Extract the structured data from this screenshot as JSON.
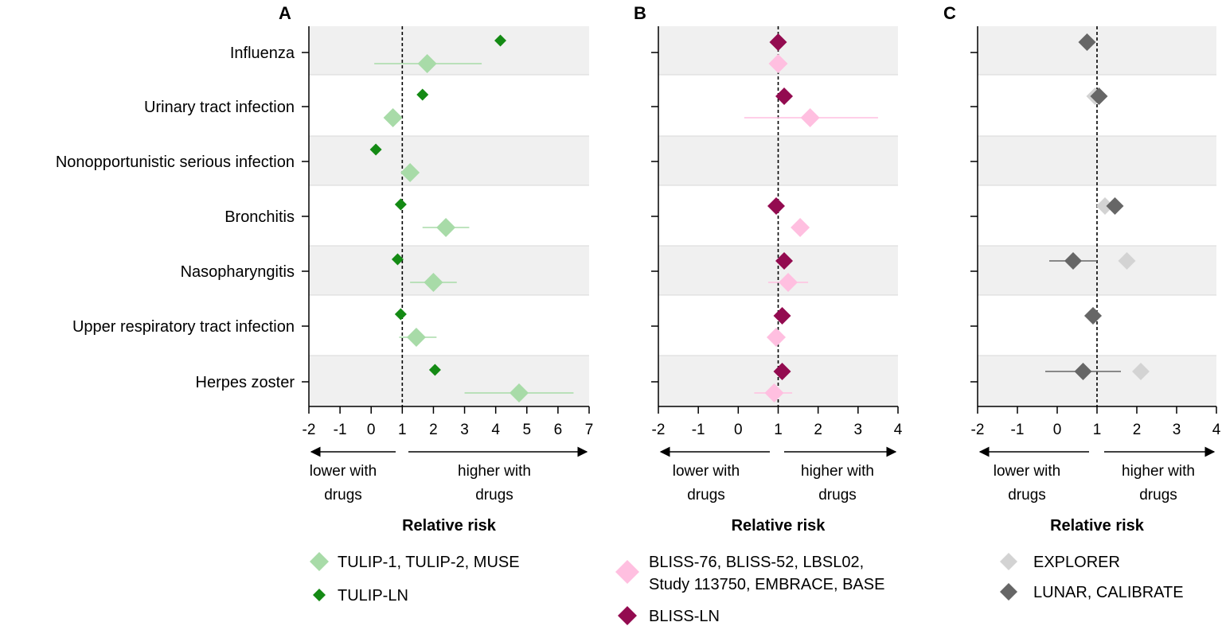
{
  "chart_data": {
    "categories": [
      "Influenza",
      "Urinary tract infection",
      "Nonopportunistic serious infection",
      "Bronchitis",
      "Nasopharyngitis",
      "Upper respiratory tract infection",
      "Herpes zoster"
    ],
    "panels": [
      {
        "id": "A",
        "type": "scatter",
        "title": "A",
        "xlabel": "Relative risk",
        "xlim": [
          -2,
          7
        ],
        "xticks": [
          "-2",
          "-1",
          "0",
          "1",
          "2",
          "3",
          "4",
          "5",
          "6",
          "7"
        ],
        "reference_line": 1,
        "direction_left": [
          "lower with",
          "drugs"
        ],
        "direction_right": [
          "higher with",
          "drugs"
        ],
        "series": [
          {
            "name": "TULIP-1, TULIP-2, MUSE",
            "color": "#a8dba8",
            "marker": "large-diamond",
            "points": [
              {
                "category": "Influenza",
                "value": 1.8,
                "ci": [
                  0.1,
                  3.55
                ]
              },
              {
                "category": "Urinary tract infection",
                "value": 0.7,
                "ci": null
              },
              {
                "category": "Nonopportunistic serious infection",
                "value": 1.25,
                "ci": null
              },
              {
                "category": "Bronchitis",
                "value": 2.4,
                "ci": [
                  1.65,
                  3.15
                ]
              },
              {
                "category": "Nasopharyngitis",
                "value": 2.0,
                "ci": [
                  1.25,
                  2.75
                ]
              },
              {
                "category": "Upper respiratory tract infection",
                "value": 1.45,
                "ci": [
                  0.9,
                  2.1
                ]
              },
              {
                "category": "Herpes zoster",
                "value": 4.75,
                "ci": [
                  3.0,
                  6.5
                ]
              }
            ]
          },
          {
            "name": "TULIP-LN",
            "color": "#148a14",
            "marker": "small-diamond",
            "points": [
              {
                "category": "Influenza",
                "value": 4.15,
                "ci": null
              },
              {
                "category": "Urinary tract infection",
                "value": 1.65,
                "ci": null
              },
              {
                "category": "Nonopportunistic serious infection",
                "value": 0.15,
                "ci": null
              },
              {
                "category": "Bronchitis",
                "value": 0.95,
                "ci": null
              },
              {
                "category": "Nasopharyngitis",
                "value": 0.85,
                "ci": null
              },
              {
                "category": "Upper respiratory tract infection",
                "value": 0.95,
                "ci": null
              },
              {
                "category": "Herpes zoster",
                "value": 2.05,
                "ci": null
              }
            ]
          }
        ]
      },
      {
        "id": "B",
        "type": "scatter",
        "title": "B",
        "xlabel": "Relative risk",
        "xlim": [
          -2,
          4
        ],
        "xticks": [
          "-2",
          "-1",
          "0",
          "1",
          "2",
          "3",
          "4"
        ],
        "reference_line": 1,
        "direction_left": [
          "lower with",
          "drugs"
        ],
        "direction_right": [
          "higher with",
          "drugs"
        ],
        "series": [
          {
            "name": "BLISS-76, BLISS-52, LBSL02, Study 113750, EMBRACE, BASE",
            "color": "#ffbfe0",
            "marker": "large-diamond",
            "points": [
              {
                "category": "Influenza",
                "value": 1.0,
                "ci": null
              },
              {
                "category": "Urinary tract infection",
                "value": 1.8,
                "ci": [
                  0.15,
                  3.5
                ]
              },
              {
                "category": "Bronchitis",
                "value": 1.55,
                "ci": null
              },
              {
                "category": "Nasopharyngitis",
                "value": 1.25,
                "ci": [
                  0.75,
                  1.75
                ]
              },
              {
                "category": "Upper respiratory tract infection",
                "value": 0.95,
                "ci": null
              },
              {
                "category": "Herpes zoster",
                "value": 0.9,
                "ci": [
                  0.4,
                  1.35
                ]
              }
            ]
          },
          {
            "name": "BLISS-LN",
            "color": "#930b50",
            "marker": "diamond",
            "points": [
              {
                "category": "Influenza",
                "value": 1.0,
                "ci": null
              },
              {
                "category": "Urinary tract infection",
                "value": 1.15,
                "ci": null
              },
              {
                "category": "Bronchitis",
                "value": 0.95,
                "ci": null
              },
              {
                "category": "Nasopharyngitis",
                "value": 1.15,
                "ci": null
              },
              {
                "category": "Upper respiratory tract infection",
                "value": 1.1,
                "ci": null
              },
              {
                "category": "Herpes zoster",
                "value": 1.1,
                "ci": null
              }
            ]
          }
        ]
      },
      {
        "id": "C",
        "type": "scatter",
        "title": "C",
        "xlabel": "Relative risk",
        "xlim": [
          -2,
          4
        ],
        "xticks": [
          "-2",
          "-1",
          "0",
          "1",
          "2",
          "3",
          "4"
        ],
        "reference_line": 1,
        "direction_left": [
          "lower with",
          "drugs"
        ],
        "direction_right": [
          "higher with",
          "drugs"
        ],
        "series": [
          {
            "name": "EXPLORER",
            "color": "#d3d3d3",
            "marker": "diamond",
            "points": [
              {
                "category": "Influenza",
                "value": 0.75,
                "ci": null
              },
              {
                "category": "Urinary tract infection",
                "value": 0.95,
                "ci": null
              },
              {
                "category": "Bronchitis",
                "value": 1.2,
                "ci": null
              },
              {
                "category": "Nasopharyngitis",
                "value": 1.75,
                "ci": null
              },
              {
                "category": "Upper respiratory tract infection",
                "value": 0.9,
                "ci": null
              },
              {
                "category": "Herpes zoster",
                "value": 2.1,
                "ci": null
              }
            ]
          },
          {
            "name": "LUNAR, CALIBRATE",
            "color": "#666666",
            "marker": "diamond",
            "points": [
              {
                "category": "Influenza",
                "value": 0.75,
                "ci": null
              },
              {
                "category": "Urinary tract infection",
                "value": 1.05,
                "ci": null
              },
              {
                "category": "Bronchitis",
                "value": 1.45,
                "ci": null
              },
              {
                "category": "Nasopharyngitis",
                "value": 0.4,
                "ci": [
                  -0.2,
                  1.0
                ]
              },
              {
                "category": "Upper respiratory tract infection",
                "value": 0.9,
                "ci": null
              },
              {
                "category": "Herpes zoster",
                "value": 0.65,
                "ci": [
                  -0.3,
                  1.6
                ]
              }
            ]
          }
        ]
      }
    ],
    "legends": [
      [
        "TULIP-1, TULIP-2, MUSE",
        "TULIP-LN"
      ],
      [
        "BLISS-76, BLISS-52, LBSL02,",
        "Study 113750, EMBRACE, BASE",
        "BLISS-LN"
      ],
      [
        "EXPLORER",
        "LUNAR, CALIBRATE"
      ]
    ]
  }
}
